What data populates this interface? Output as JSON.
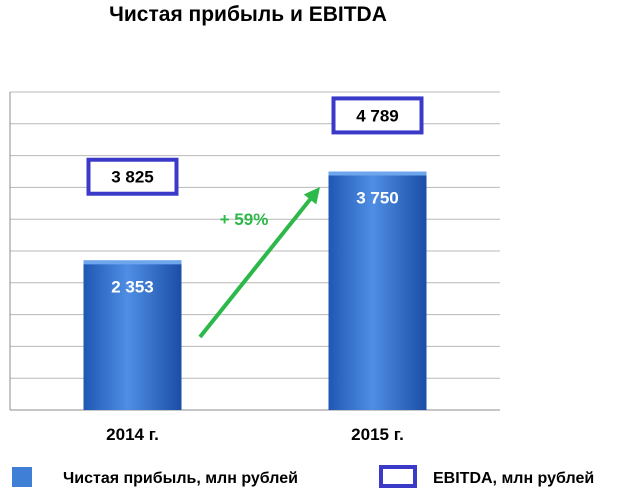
{
  "chart_data": {
    "type": "bar",
    "title": "Чистая прибыль и EBITDA",
    "categories": [
      "2014 г.",
      "2015 г."
    ],
    "series": [
      {
        "name": "Чистая прибыль, млн рублей",
        "values": [
          2353,
          3750
        ],
        "labels": [
          "2 353",
          "3 750"
        ],
        "color": "#3f7fd6"
      },
      {
        "name": "EBITDA, млн рублей",
        "values": [
          3825,
          4789
        ],
        "labels": [
          "3 825",
          "4 789"
        ],
        "color": "#3b39c8"
      }
    ],
    "ylim": [
      0,
      5000
    ],
    "grid": true,
    "legend": "bottom",
    "annotation": {
      "text": "+ 59%",
      "color": "#2db84a"
    }
  }
}
